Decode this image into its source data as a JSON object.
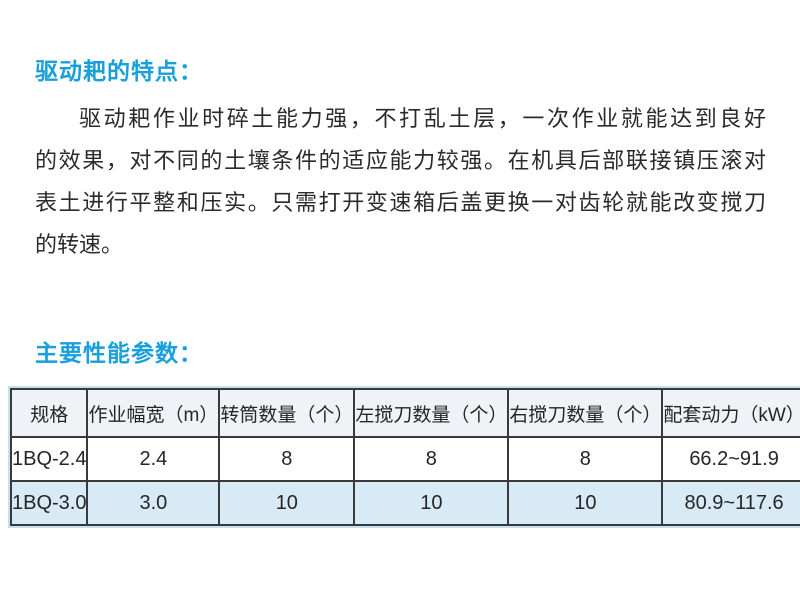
{
  "page": {
    "background_color": "#ffffff",
    "accent_color": "#18a0dc",
    "text_color": "#2b2b2b",
    "table_border_color": "#3a3a3a",
    "table_outer_glow_color": "#c4e1f2",
    "table_header_bg": "#eff3f7",
    "table_alt_row_bg": "#d8eaf6"
  },
  "features": {
    "heading": "驱动耙的特点：",
    "lines": [
      "驱动耙作业时碎土能力强，不打乱土层，一次作业就能达到良好",
      "的效果，对不同的土壤条件的适应能力较强。在机具后部联接镇压滚对",
      "表土进行平整和压实。只需打开变速箱后盖更换一对齿轮就能改变搅刀",
      "的转速。"
    ]
  },
  "parameters": {
    "heading": "主要性能参数：",
    "table": {
      "headers": [
        "规格",
        "作业幅宽（m）",
        "转筒数量（个）",
        "左搅刀数量（个）",
        "右搅刀数量（个）",
        "配套动力（kW）"
      ],
      "rows": [
        [
          "1BQ-2.4",
          "2.4",
          "8",
          "8",
          "8",
          "66.2~91.9"
        ],
        [
          "1BQ-3.0",
          "3.0",
          "10",
          "10",
          "10",
          "80.9~117.6"
        ]
      ]
    }
  }
}
